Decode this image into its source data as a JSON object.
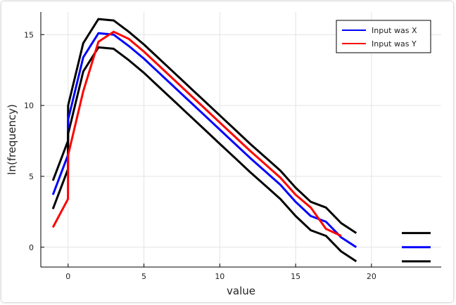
{
  "chart_data": {
    "type": "line",
    "title": "",
    "xlabel": "value",
    "ylabel": "ln(frequency)",
    "xlim": [
      -1.8,
      24.6
    ],
    "ylim": [
      -1.4,
      16.6
    ],
    "xticks": [
      0,
      5,
      10,
      15,
      20
    ],
    "yticks": [
      0,
      5,
      10,
      15
    ],
    "grid": true,
    "legend_position": "top-right",
    "series": [
      {
        "name": "",
        "color": "#000000",
        "x": [
          -1,
          -0.01,
          0,
          1,
          2,
          3,
          4,
          5,
          6,
          7,
          8,
          9,
          10,
          11,
          12,
          13,
          14,
          15,
          16,
          17,
          18,
          19
        ],
        "y": [
          4.7,
          7.5,
          10.0,
          14.4,
          16.1,
          16.0,
          15.2,
          14.3,
          13.3,
          12.3,
          11.3,
          10.3,
          9.3,
          8.3,
          7.3,
          6.35,
          5.4,
          4.2,
          3.2,
          2.8,
          1.7,
          1.0
        ]
      },
      {
        "name": "Input was X",
        "color": "#0000ff",
        "x": [
          -1,
          -0.01,
          0,
          1,
          2,
          3,
          4,
          5,
          6,
          7,
          8,
          9,
          10,
          11,
          12,
          13,
          14,
          15,
          16,
          17,
          18,
          19
        ],
        "y": [
          3.7,
          6.5,
          9.0,
          13.4,
          15.1,
          15.0,
          14.2,
          13.3,
          12.3,
          11.3,
          10.3,
          9.3,
          8.3,
          7.3,
          6.3,
          5.35,
          4.4,
          3.2,
          2.2,
          1.8,
          0.7,
          0.0
        ]
      },
      {
        "name": "",
        "color": "#000000",
        "x": [
          -1,
          -0.01,
          0,
          1,
          2,
          3,
          4,
          5,
          6,
          7,
          8,
          9,
          10,
          11,
          12,
          13,
          14,
          15,
          16,
          17,
          18,
          19
        ],
        "y": [
          2.7,
          5.5,
          8.0,
          12.4,
          14.1,
          14.0,
          13.2,
          12.3,
          11.3,
          10.3,
          9.3,
          8.3,
          7.3,
          6.3,
          5.3,
          4.35,
          3.4,
          2.2,
          1.2,
          0.8,
          -0.3,
          -1.0
        ]
      },
      {
        "name": "Input was Y",
        "color": "#ff0000",
        "x": [
          -1,
          -0.01,
          0,
          1,
          2,
          3,
          4,
          5,
          6,
          7,
          8,
          9,
          10,
          11,
          12,
          13,
          14,
          15,
          16,
          17,
          18
        ],
        "y": [
          1.4,
          3.4,
          6.5,
          11.0,
          14.5,
          15.2,
          14.7,
          13.8,
          12.8,
          11.8,
          10.8,
          9.8,
          8.8,
          7.8,
          6.8,
          5.85,
          4.9,
          3.7,
          2.8,
          1.3,
          0.8
        ]
      },
      {
        "name": "",
        "color": "#000000",
        "x": [
          22,
          23.9
        ],
        "y": [
          1.0,
          1.0
        ]
      },
      {
        "name": "",
        "color": "#0000ff",
        "x": [
          22,
          23.9
        ],
        "y": [
          0.0,
          0.0
        ]
      },
      {
        "name": "",
        "color": "#000000",
        "x": [
          22,
          23.9
        ],
        "y": [
          -1.0,
          -1.0
        ]
      }
    ]
  }
}
